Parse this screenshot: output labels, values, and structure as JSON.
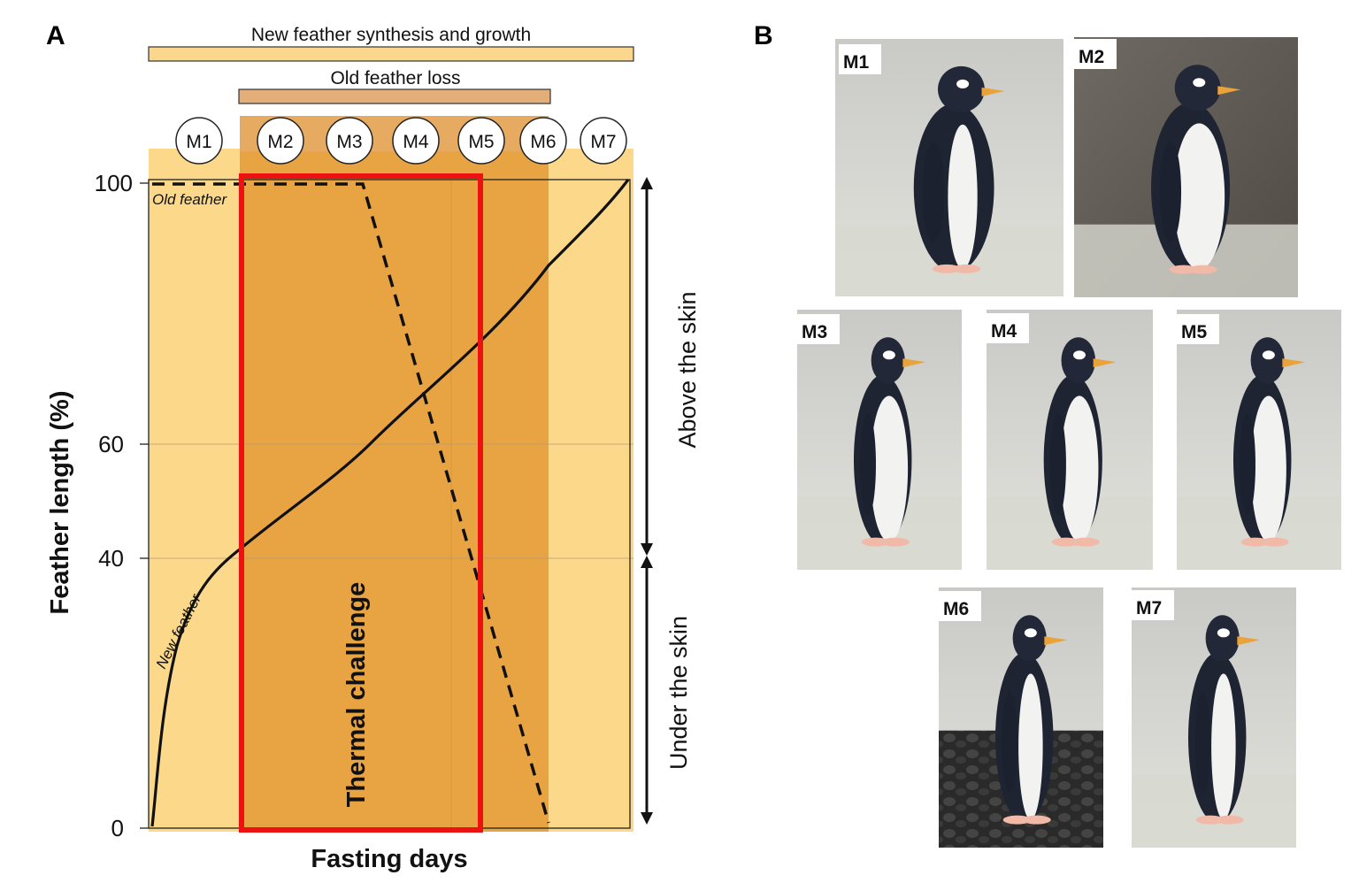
{
  "panel_a": {
    "letter": "A",
    "bar_synthesis_label": "New feather synthesis and growth",
    "bar_loss_label": "Old feather loss",
    "stages": [
      "M1",
      "M2",
      "M3",
      "M4",
      "M5",
      "M6",
      "M7"
    ],
    "y_axis_label": "Feather length (%)",
    "x_axis_label": "Fasting days",
    "y_ticks": [
      "100",
      "60",
      "40",
      "0"
    ],
    "old_feather_label": "Old feather",
    "new_feather_label": "New feather",
    "thermal_label": "Thermal challenge",
    "above_skin_label": "Above the skin",
    "under_skin_label": "Under the skin",
    "colors": {
      "light_band": "#fcd98a",
      "dark_band": "#e8a443",
      "bar_synthesis": "#fbd78e",
      "bar_loss": "#e3ae7a",
      "thermal_box": "#ee1111"
    }
  },
  "panel_b": {
    "letter": "B",
    "photos": [
      {
        "label": "M1"
      },
      {
        "label": "M2"
      },
      {
        "label": "M3"
      },
      {
        "label": "M4"
      },
      {
        "label": "M5"
      },
      {
        "label": "M6"
      },
      {
        "label": "M7"
      }
    ]
  }
}
